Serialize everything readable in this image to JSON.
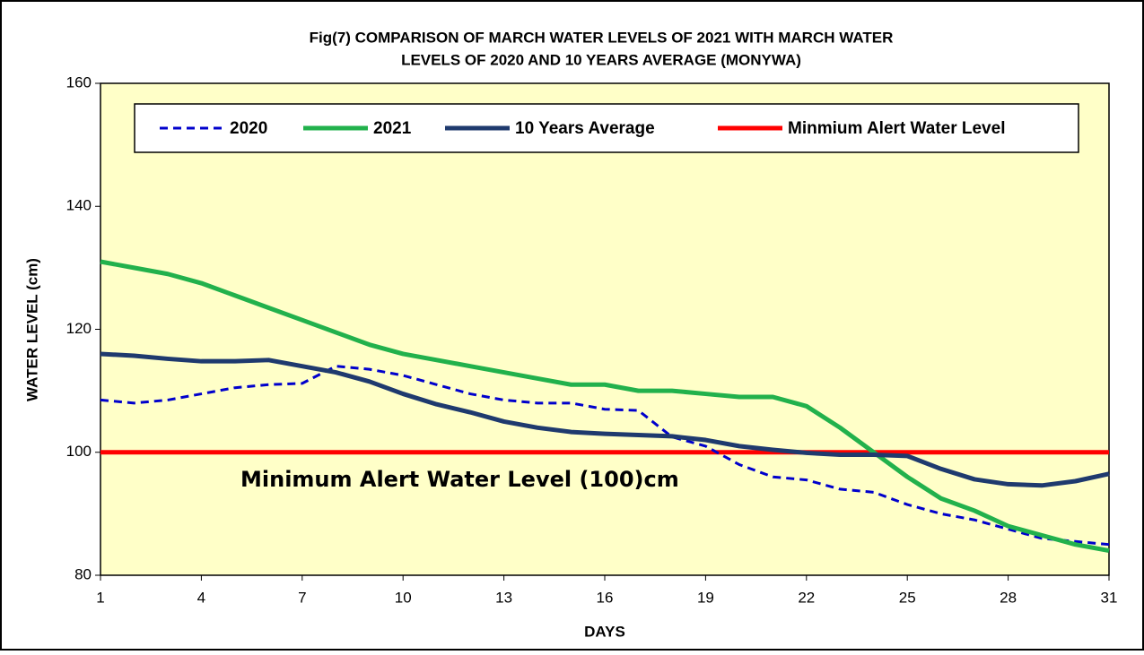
{
  "chart_data": {
    "type": "line",
    "title": [
      "Fig(7)  COMPARISON  OF MARCH WATER  LEVELS OF 2021  WITH  MARCH WATER",
      "LEVELS OF 2020  AND 10 YEARS  AVERAGE    (MONYWA)"
    ],
    "xlabel": "DAYS",
    "ylabel": "WATER LEVEL (cm)",
    "annotation": "Minimum Alert Water  Level (100)cm",
    "x": [
      1,
      2,
      3,
      4,
      5,
      6,
      7,
      8,
      9,
      10,
      11,
      12,
      13,
      14,
      15,
      16,
      17,
      18,
      19,
      20,
      21,
      22,
      23,
      24,
      25,
      26,
      27,
      28,
      29,
      30,
      31
    ],
    "series": [
      {
        "name": "2020",
        "color": "#0000cc",
        "style": "dashed",
        "values": [
          108.5,
          108,
          108.5,
          109.5,
          110.5,
          111,
          111.2,
          114,
          113.5,
          112.5,
          111,
          109.5,
          108.5,
          108,
          108,
          107,
          106.8,
          102.5,
          101,
          98,
          96,
          95.5,
          94,
          93.5,
          91.5,
          90,
          89,
          87.5,
          86,
          85.5,
          85
        ]
      },
      {
        "name": "2021",
        "color": "#22b14c",
        "style": "solid",
        "values": [
          131,
          130,
          129,
          127.5,
          125.5,
          123.5,
          121.5,
          119.5,
          117.5,
          116,
          115,
          114,
          113,
          112,
          111,
          111,
          110,
          110,
          109.5,
          109,
          109,
          107.5,
          104,
          100,
          96,
          92.5,
          90.5,
          88,
          86.5,
          85,
          84
        ]
      },
      {
        "name": "10 Years Average",
        "color": "#1f3a6e",
        "style": "solid",
        "values": [
          116,
          115.7,
          115.2,
          114.8,
          114.8,
          115,
          114,
          113,
          111.5,
          109.5,
          107.8,
          106.5,
          105,
          104,
          103.3,
          103,
          102.8,
          102.6,
          102,
          101,
          100.4,
          99.9,
          99.6,
          99.6,
          99.4,
          97.3,
          95.6,
          94.8,
          94.6,
          95.3,
          96.5
        ]
      },
      {
        "name": "Minmium Alert Water Level",
        "color": "#ff0000",
        "style": "solid",
        "values": [
          100,
          100,
          100,
          100,
          100,
          100,
          100,
          100,
          100,
          100,
          100,
          100,
          100,
          100,
          100,
          100,
          100,
          100,
          100,
          100,
          100,
          100,
          100,
          100,
          100,
          100,
          100,
          100,
          100,
          100,
          100
        ]
      }
    ],
    "xlim": [
      1,
      31
    ],
    "xticks": [
      1,
      4,
      7,
      10,
      13,
      16,
      19,
      22,
      25,
      28,
      31
    ],
    "ylim": [
      80,
      160
    ],
    "yticks": [
      80,
      100,
      120,
      140,
      160
    ],
    "plot_background": "#ffffc8"
  }
}
